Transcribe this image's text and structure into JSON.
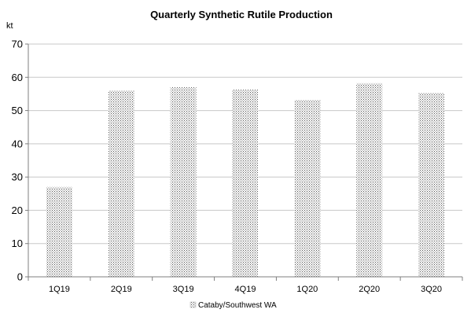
{
  "chart_data": {
    "type": "bar",
    "title": "Quarterly Synthetic Rutile Production",
    "ylabel": "kt",
    "xlabel": "",
    "categories": [
      "1Q19",
      "2Q19",
      "3Q19",
      "4Q19",
      "1Q20",
      "2Q20",
      "3Q20"
    ],
    "series": [
      {
        "name": "Cataby/Southwest WA",
        "values": [
          27,
          56,
          57,
          56.3,
          53.2,
          58.2,
          55.3
        ]
      }
    ],
    "ylim": [
      0,
      70
    ],
    "yticks": [
      0,
      10,
      20,
      30,
      40,
      50,
      60,
      70
    ],
    "grid": true,
    "legend_position": "bottom",
    "colors": {
      "bar_dots": "#555555",
      "bar_bg": "#ffffff",
      "grid": "#c8c8c8",
      "axis": "#7f7f7f"
    }
  }
}
